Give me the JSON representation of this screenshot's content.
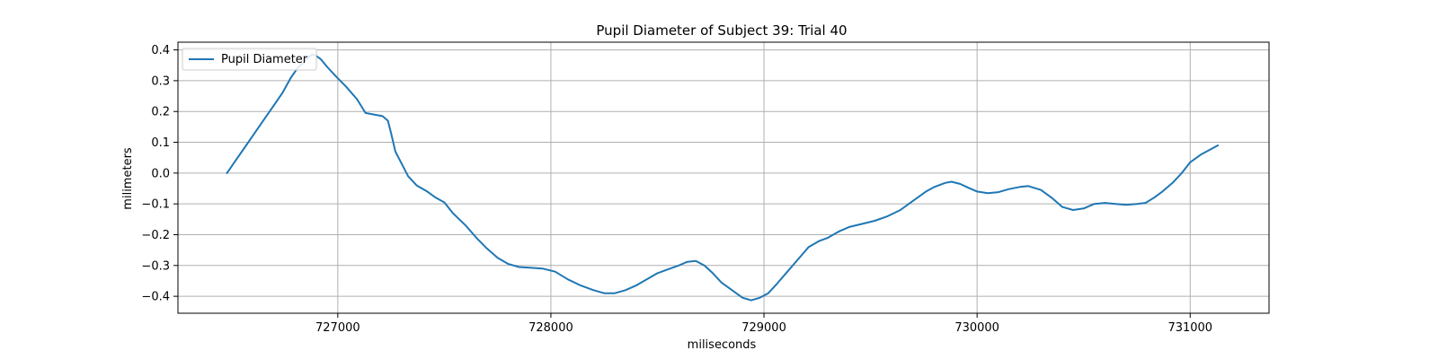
{
  "chart_data": {
    "type": "line",
    "title": "Pupil Diameter of Subject 39: Trial 40",
    "xlabel": "miliseconds",
    "ylabel": "milimeters",
    "xlim": [
      726250,
      731370
    ],
    "ylim": [
      -0.455,
      0.425
    ],
    "xticks": [
      727000,
      728000,
      729000,
      730000,
      731000
    ],
    "yticks": [
      0.4,
      0.3,
      0.2,
      0.1,
      0.0,
      -0.1,
      -0.2,
      -0.3,
      -0.4
    ],
    "ytick_labels": [
      "0.4",
      "0.3",
      "0.2",
      "0.1",
      "0.0",
      "−0.1",
      "−0.2",
      "−0.3",
      "−0.4"
    ],
    "grid": true,
    "legend": {
      "position": "upper-left",
      "entries": [
        "Pupil Diameter"
      ]
    },
    "series": [
      {
        "name": "Pupil Diameter",
        "color": "#1f77b4",
        "points": [
          [
            726480,
            0.0
          ],
          [
            726520,
            0.04
          ],
          [
            726570,
            0.09
          ],
          [
            726620,
            0.14
          ],
          [
            726660,
            0.18
          ],
          [
            726700,
            0.22
          ],
          [
            726740,
            0.26
          ],
          [
            726780,
            0.31
          ],
          [
            726810,
            0.34
          ],
          [
            726840,
            0.36
          ],
          [
            726860,
            0.375
          ],
          [
            726880,
            0.385
          ],
          [
            726900,
            0.38
          ],
          [
            726920,
            0.37
          ],
          [
            726950,
            0.345
          ],
          [
            726990,
            0.315
          ],
          [
            727040,
            0.28
          ],
          [
            727090,
            0.24
          ],
          [
            727130,
            0.195
          ],
          [
            727170,
            0.19
          ],
          [
            727210,
            0.185
          ],
          [
            727235,
            0.17
          ],
          [
            727250,
            0.13
          ],
          [
            727270,
            0.07
          ],
          [
            727300,
            0.03
          ],
          [
            727330,
            -0.01
          ],
          [
            727370,
            -0.04
          ],
          [
            727420,
            -0.06
          ],
          [
            727460,
            -0.08
          ],
          [
            727500,
            -0.095
          ],
          [
            727540,
            -0.13
          ],
          [
            727600,
            -0.17
          ],
          [
            727650,
            -0.21
          ],
          [
            727700,
            -0.245
          ],
          [
            727750,
            -0.275
          ],
          [
            727800,
            -0.295
          ],
          [
            727850,
            -0.305
          ],
          [
            727900,
            -0.307
          ],
          [
            727960,
            -0.31
          ],
          [
            728020,
            -0.32
          ],
          [
            728080,
            -0.345
          ],
          [
            728140,
            -0.365
          ],
          [
            728200,
            -0.38
          ],
          [
            728250,
            -0.39
          ],
          [
            728300,
            -0.39
          ],
          [
            728350,
            -0.38
          ],
          [
            728400,
            -0.365
          ],
          [
            728450,
            -0.345
          ],
          [
            728500,
            -0.325
          ],
          [
            728560,
            -0.31
          ],
          [
            728600,
            -0.3
          ],
          [
            728640,
            -0.288
          ],
          [
            728680,
            -0.285
          ],
          [
            728720,
            -0.3
          ],
          [
            728760,
            -0.325
          ],
          [
            728800,
            -0.355
          ],
          [
            728850,
            -0.38
          ],
          [
            728900,
            -0.405
          ],
          [
            728940,
            -0.413
          ],
          [
            728980,
            -0.405
          ],
          [
            729020,
            -0.39
          ],
          [
            729060,
            -0.36
          ],
          [
            729110,
            -0.32
          ],
          [
            729160,
            -0.28
          ],
          [
            729210,
            -0.24
          ],
          [
            729260,
            -0.22
          ],
          [
            729300,
            -0.21
          ],
          [
            729350,
            -0.19
          ],
          [
            729400,
            -0.175
          ],
          [
            729460,
            -0.165
          ],
          [
            729520,
            -0.155
          ],
          [
            729580,
            -0.14
          ],
          [
            729640,
            -0.12
          ],
          [
            729700,
            -0.09
          ],
          [
            729760,
            -0.06
          ],
          [
            729800,
            -0.045
          ],
          [
            729850,
            -0.032
          ],
          [
            729880,
            -0.028
          ],
          [
            729920,
            -0.035
          ],
          [
            729960,
            -0.048
          ],
          [
            730000,
            -0.06
          ],
          [
            730050,
            -0.065
          ],
          [
            730100,
            -0.062
          ],
          [
            730150,
            -0.052
          ],
          [
            730200,
            -0.045
          ],
          [
            730240,
            -0.042
          ],
          [
            730300,
            -0.055
          ],
          [
            730350,
            -0.08
          ],
          [
            730400,
            -0.11
          ],
          [
            730450,
            -0.12
          ],
          [
            730500,
            -0.115
          ],
          [
            730550,
            -0.1
          ],
          [
            730600,
            -0.097
          ],
          [
            730650,
            -0.1
          ],
          [
            730700,
            -0.103
          ],
          [
            730750,
            -0.1
          ],
          [
            730790,
            -0.097
          ],
          [
            730830,
            -0.08
          ],
          [
            730870,
            -0.06
          ],
          [
            730920,
            -0.03
          ],
          [
            730960,
            0.0
          ],
          [
            731000,
            0.035
          ],
          [
            731050,
            0.06
          ],
          [
            731090,
            0.075
          ],
          [
            731130,
            0.09
          ]
        ]
      }
    ]
  }
}
